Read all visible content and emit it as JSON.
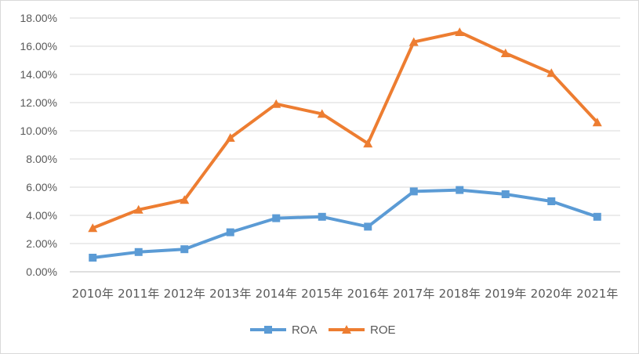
{
  "chart_data": {
    "type": "line",
    "title": "",
    "xlabel": "",
    "ylabel": "",
    "categories": [
      "2010年",
      "2011年",
      "2012年",
      "2013年",
      "2014年",
      "2015年",
      "2016年",
      "2017年",
      "2018年",
      "2019年",
      "2020年",
      "2021年"
    ],
    "ylim": [
      0,
      0.18
    ],
    "yticks": [
      "0.00%",
      "2.00%",
      "4.00%",
      "6.00%",
      "8.00%",
      "10.00%",
      "12.00%",
      "14.00%",
      "16.00%",
      "18.00%"
    ],
    "grid": true,
    "legend_position": "bottom",
    "series": [
      {
        "name": "ROA",
        "color": "#5b9bd5",
        "marker": "square",
        "values": [
          0.01,
          0.014,
          0.016,
          0.028,
          0.038,
          0.039,
          0.032,
          0.057,
          0.058,
          0.055,
          0.05,
          0.039
        ]
      },
      {
        "name": "ROE",
        "color": "#ed7d31",
        "marker": "triangle",
        "values": [
          0.031,
          0.044,
          0.051,
          0.095,
          0.119,
          0.112,
          0.091,
          0.163,
          0.17,
          0.155,
          0.141,
          0.106
        ]
      }
    ]
  }
}
